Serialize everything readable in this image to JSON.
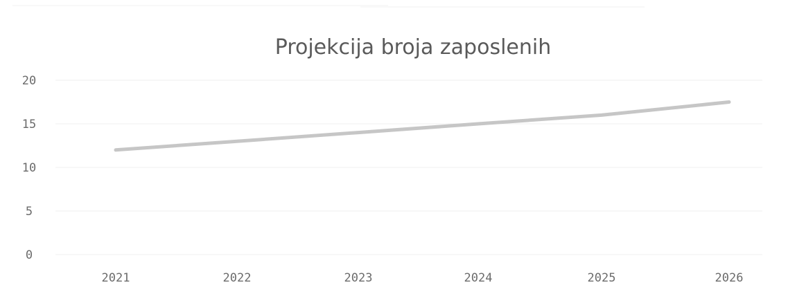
{
  "chart_data": {
    "type": "line",
    "title": "Projekcija broja zaposlenih",
    "categories": [
      "2021",
      "2022",
      "2023",
      "2024",
      "2025",
      "2026"
    ],
    "series": [
      {
        "values": [
          12,
          13,
          14,
          15,
          16,
          17.5
        ]
      }
    ],
    "ylim": [
      0,
      20
    ],
    "yticks": [
      "0",
      "5",
      "10",
      "15",
      "20"
    ],
    "grid": true,
    "legend": "none",
    "colors": {
      "line": "#c6c6c6",
      "text": "#6b6b6b",
      "title": "#5a5a5a"
    }
  }
}
